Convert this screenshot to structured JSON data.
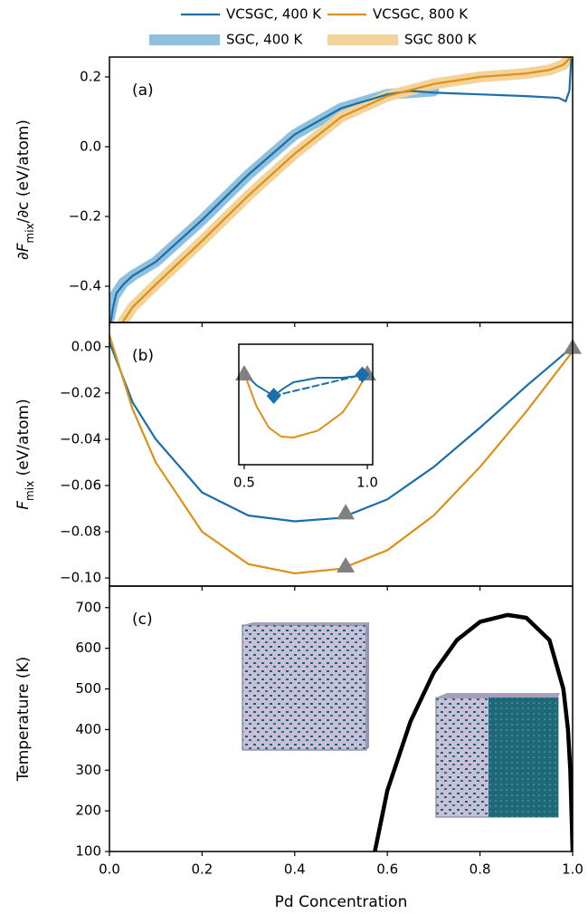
{
  "chart_data": [
    {
      "type": "line",
      "panel_label": "(a)",
      "ylabel": [
        "∂F",
        "mix",
        "/∂c (eV/atom)"
      ],
      "xlim": [
        0,
        1
      ],
      "ylim": [
        -0.504,
        0.257
      ],
      "yticks": [
        {
          "value": -0.4,
          "label": "−0.4"
        },
        {
          "value": -0.2,
          "label": "−0.2"
        },
        {
          "value": 0,
          "label": "0.0"
        },
        0.2
      ],
      "series": [
        {
          "name": "SGC, 400 K",
          "color": "#8fc1de",
          "width": 12,
          "x": [
            0.0,
            0.01,
            0.03,
            0.05,
            0.1,
            0.2,
            0.3,
            0.4,
            0.5,
            0.6,
            0.7
          ],
          "values": [
            -0.49,
            -0.43,
            -0.39,
            -0.37,
            -0.33,
            -0.21,
            -0.08,
            0.035,
            0.11,
            0.15,
            0.16
          ]
        },
        {
          "name": "SGC 800 K",
          "color": "#f3d39a",
          "width": 12,
          "x": [
            0.03,
            0.05,
            0.1,
            0.2,
            0.3,
            0.4,
            0.5,
            0.6,
            0.7,
            0.8,
            0.9,
            0.95,
            0.98,
            0.995
          ],
          "values": [
            -0.5,
            -0.46,
            -0.395,
            -0.27,
            -0.14,
            -0.02,
            0.085,
            0.145,
            0.18,
            0.2,
            0.21,
            0.22,
            0.235,
            0.255
          ]
        },
        {
          "name": "VCSGC, 400 K",
          "color": "#1a6fa8",
          "width": 2.2,
          "x": [
            0.003,
            0.008,
            0.015,
            0.03,
            0.05,
            0.1,
            0.2,
            0.3,
            0.4,
            0.5,
            0.6,
            0.65,
            0.7,
            0.8,
            0.9,
            0.97,
            0.985,
            0.993,
            0.997
          ],
          "values": [
            -0.5,
            -0.46,
            -0.42,
            -0.395,
            -0.37,
            -0.33,
            -0.21,
            -0.08,
            0.035,
            0.11,
            0.15,
            0.16,
            0.155,
            0.15,
            0.145,
            0.14,
            0.13,
            0.16,
            0.25
          ]
        },
        {
          "name": "VCSGC, 800 K",
          "color": "#dc9118",
          "width": 2.2,
          "x": [
            0.03,
            0.05,
            0.1,
            0.2,
            0.3,
            0.4,
            0.5,
            0.6,
            0.7,
            0.8,
            0.9,
            0.95,
            0.98,
            0.995
          ],
          "values": [
            -0.5,
            -0.46,
            -0.395,
            -0.27,
            -0.14,
            -0.02,
            0.085,
            0.145,
            0.18,
            0.2,
            0.21,
            0.22,
            0.235,
            0.255
          ]
        }
      ]
    },
    {
      "type": "line",
      "panel_label": "(b)",
      "ylabel": [
        "F",
        "mix",
        " (eV/atom)"
      ],
      "xlim": [
        0,
        1
      ],
      "ylim": [
        -0.1035,
        0.0105
      ],
      "yticks": [
        {
          "value": -0.1,
          "label": "−0.10"
        },
        {
          "value": -0.08,
          "label": "−0.08"
        },
        {
          "value": -0.06,
          "label": "−0.06"
        },
        {
          "value": -0.04,
          "label": "−0.04"
        },
        {
          "value": -0.02,
          "label": "−0.02"
        },
        {
          "value": 0,
          "label": "0.00"
        }
      ],
      "series": [
        {
          "color": "#1a6fa8",
          "width": 2.2,
          "x": [
            0,
            0.05,
            0.1,
            0.2,
            0.3,
            0.4,
            0.5,
            0.6,
            0.7,
            0.8,
            0.9,
            1.0
          ],
          "values": [
            0.002,
            -0.024,
            -0.04,
            -0.063,
            -0.073,
            -0.0755,
            -0.074,
            -0.066,
            -0.052,
            -0.035,
            -0.017,
            0
          ]
        },
        {
          "color": "#dc9118",
          "width": 2.2,
          "x": [
            0,
            0.05,
            0.1,
            0.2,
            0.3,
            0.4,
            0.5,
            0.6,
            0.7,
            0.8,
            0.9,
            1.0
          ],
          "values": [
            0.005,
            -0.027,
            -0.05,
            -0.08,
            -0.094,
            -0.098,
            -0.096,
            -0.088,
            -0.073,
            -0.052,
            -0.028,
            -0.002
          ]
        }
      ],
      "points": {
        "color": "#808080",
        "x": [
          0.51,
          0.51,
          1.0
        ],
        "values": [
          -0.0715,
          -0.0945,
          0
        ]
      }
    },
    {
      "type": "line",
      "inset": true,
      "xlim": [
        0.478,
        1.022
      ],
      "ylim": [
        -0.0303,
        0.0096
      ],
      "xticks": [
        {
          "value": 0.5,
          "label": "0.5"
        },
        {
          "value": 1.0,
          "label": "1.0"
        }
      ],
      "series": [
        {
          "color": "#1a6fa8",
          "width": 2,
          "x": [
            0.5,
            0.55,
            0.6,
            0.62,
            0.66,
            0.7,
            0.8,
            0.9,
            0.95,
            1.0
          ],
          "values": [
            0,
            -0.004,
            -0.0065,
            -0.0075,
            -0.005,
            -0.003,
            -0.0015,
            -0.0015,
            -0.001,
            0
          ]
        },
        {
          "color": "#dc9118",
          "width": 2,
          "x": [
            0.5,
            0.55,
            0.6,
            0.65,
            0.7,
            0.8,
            0.9,
            0.95,
            1.0
          ],
          "values": [
            0,
            -0.011,
            -0.018,
            -0.021,
            -0.0213,
            -0.019,
            -0.013,
            -0.007,
            0
          ]
        },
        {
          "color": "#1a6fa8",
          "width": 2,
          "dashed": true,
          "x": [
            0.62,
            0.98
          ],
          "values": [
            -0.0075,
            -0.0005
          ]
        }
      ],
      "points": {
        "color": "#808080",
        "x": [
          0.5,
          1.0
        ],
        "values": [
          0,
          0
        ]
      },
      "diamonds": {
        "color": "#1a6fa8",
        "x": [
          0.62,
          0.98
        ],
        "values": [
          -0.0075,
          -0.0005
        ]
      }
    },
    {
      "type": "line",
      "panel_label": "(c)",
      "ylabel": [
        "Temperature (K)"
      ],
      "xlabel": "Pd Concentration",
      "xlim": [
        0,
        1
      ],
      "ylim": [
        100,
        753
      ],
      "xticks": [
        {
          "value": 0,
          "label": "0.0"
        },
        0.2,
        0.4,
        0.6,
        0.8,
        {
          "value": 1.0,
          "label": "1.0"
        }
      ],
      "yticks": [
        100,
        200,
        300,
        400,
        500,
        600,
        700
      ],
      "series": [
        {
          "color": "#000000",
          "width": 4.5,
          "x": [
            0.573,
            0.6,
            0.65,
            0.7,
            0.75,
            0.8,
            0.86,
            0.9,
            0.95,
            0.98,
            0.99,
            0.995,
            1.0
          ],
          "values": [
            100,
            250,
            420,
            540,
            620,
            665,
            682,
            675,
            620,
            500,
            400,
            300,
            100
          ]
        }
      ]
    }
  ]
}
